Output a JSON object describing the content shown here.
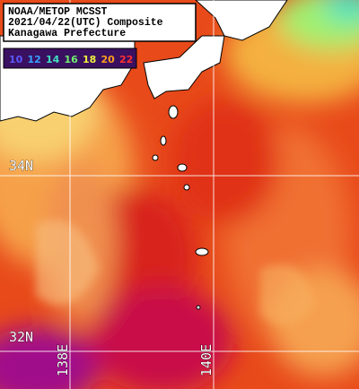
{
  "header": {
    "lines": [
      "NOAA/METOP MCSST",
      "2021/04/22(UTC) Composite",
      "Kanagawa Prefecture"
    ]
  },
  "colorbar": [
    {
      "value": 10,
      "color": "#5a5aff"
    },
    {
      "value": 12,
      "color": "#3aa0ff"
    },
    {
      "value": 14,
      "color": "#40e0c0"
    },
    {
      "value": 16,
      "color": "#70f070"
    },
    {
      "value": 18,
      "color": "#f0f040"
    },
    {
      "value": 20,
      "color": "#ffa020"
    },
    {
      "value": 22,
      "color": "#ff3030"
    }
  ],
  "grid": {
    "latitudes": [
      "34N",
      "32N"
    ],
    "longitudes": [
      "138E",
      "140E"
    ]
  }
}
